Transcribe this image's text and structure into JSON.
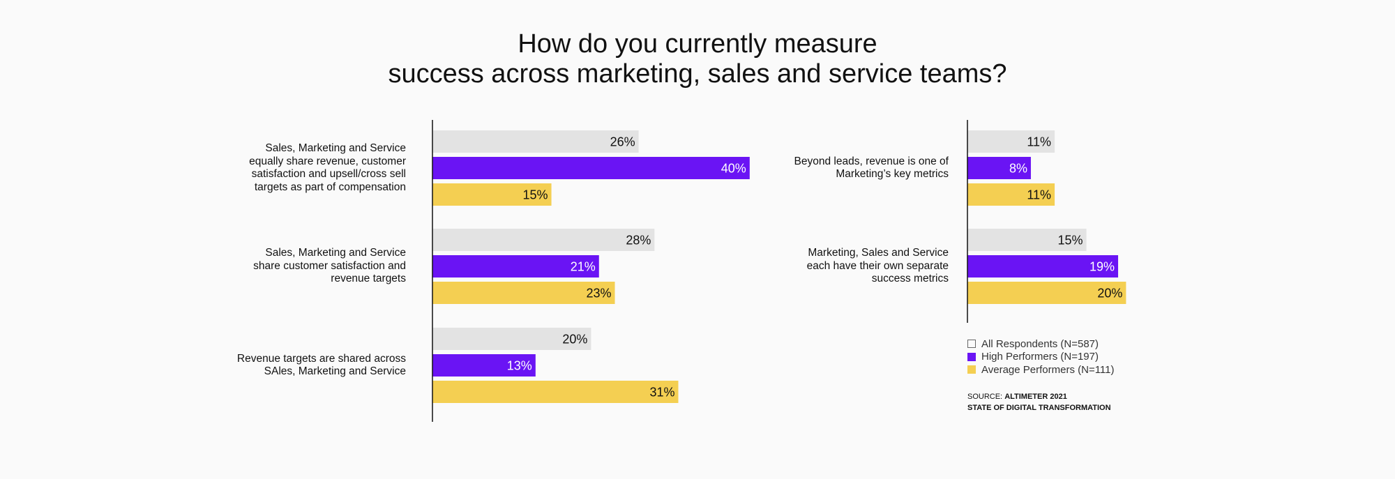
{
  "title": {
    "line1": "How do you currently measure",
    "line2": "success across marketing, sales and service teams?"
  },
  "colors": {
    "all_respondents": "#e3e3e3",
    "high_performers": "#6a14f4",
    "average_performers": "#f4cf52",
    "axis": "#111111"
  },
  "chart_data": [
    {
      "type": "bar",
      "orientation": "horizontal",
      "xlim": [
        0,
        40
      ],
      "categories": [
        "Sales, Marketing and Service equally share revenue, customer satisfaction and upsell/cross sell targets as part of compensation",
        "Sales, Marketing and Service share customer satisfaction and revenue targets",
        "Revenue targets are shared across SAles, Marketing and Service"
      ],
      "category_lines": [
        [
          "Sales, Marketing and Service",
          "equally share revenue, customer",
          "satisfaction and upsell/cross sell",
          "targets as part of compensation"
        ],
        [
          "Sales, Marketing and Service",
          "share customer satisfaction and",
          "revenue targets"
        ],
        [
          "Revenue targets are shared across",
          "SAles, Marketing and Service"
        ]
      ],
      "series": [
        {
          "name": "All Respondents (N=587)",
          "values": [
            26,
            28,
            20
          ],
          "labels": [
            "26%",
            "28%",
            "20%"
          ]
        },
        {
          "name": "High Performers (N=197)",
          "values": [
            40,
            21,
            13
          ],
          "labels": [
            "40%",
            "21%",
            "13%"
          ]
        },
        {
          "name": "Average Performers (N=111)",
          "values": [
            15,
            23,
            31
          ],
          "labels": [
            "15%",
            "23%",
            "31%"
          ]
        }
      ]
    },
    {
      "type": "bar",
      "orientation": "horizontal",
      "xlim": [
        0,
        40
      ],
      "categories": [
        "Beyond leads, revenue is one of Marketing’s key metrics",
        "Marketing, Sales and Service each have their own separate success metrics"
      ],
      "category_lines": [
        [
          "Beyond leads, revenue is one of",
          "Marketing’s key metrics"
        ],
        [
          "Marketing, Sales and Service",
          "each have their own separate",
          "success metrics"
        ]
      ],
      "series": [
        {
          "name": "All Respondents (N=587)",
          "values": [
            11,
            15
          ],
          "labels": [
            "11%",
            "15%"
          ]
        },
        {
          "name": "High Performers (N=197)",
          "values": [
            8,
            19
          ],
          "labels": [
            "8%",
            "19%"
          ]
        },
        {
          "name": "Average Performers (N=111)",
          "values": [
            11,
            20
          ],
          "labels": [
            "11%",
            "20%"
          ]
        }
      ]
    }
  ],
  "legend": {
    "items": [
      "All Respondents (N=587)",
      "High Performers (N=197)",
      "Average Performers (N=111)"
    ]
  },
  "source": {
    "prefix": "SOURCE: ",
    "name": "ALTIMETER 2021",
    "line2": "STATE OF DIGITAL TRANSFORMATION"
  }
}
